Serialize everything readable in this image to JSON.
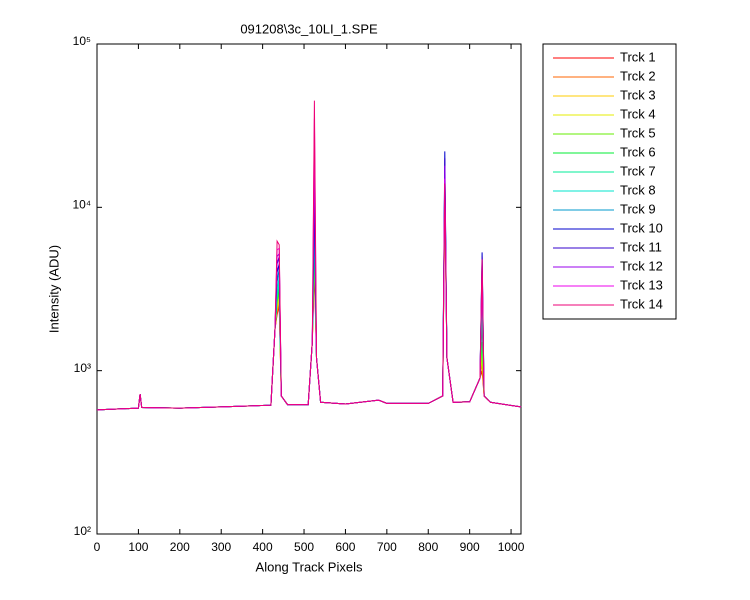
{
  "chart_data": {
    "type": "line",
    "title": "091208\\3c_10LI_1.SPE",
    "xlabel": "Along Track Pixels",
    "ylabel": "Intensity (ADU)",
    "yscale": "log",
    "xlim": [
      0,
      1024
    ],
    "ylim": [
      100,
      100000
    ],
    "xticks": [
      0,
      100,
      200,
      300,
      400,
      500,
      600,
      700,
      800,
      900,
      1000
    ],
    "yticks": [
      {
        "value": 100,
        "label": "10²"
      },
      {
        "value": 1000,
        "label": "10³"
      },
      {
        "value": 10000,
        "label": "10⁴"
      },
      {
        "value": 100000,
        "label": "10⁵"
      }
    ],
    "legend": "outside-right-top",
    "x": [
      0,
      100,
      104,
      108,
      200,
      300,
      420,
      430,
      435,
      440,
      445,
      460,
      510,
      520,
      525,
      530,
      540,
      600,
      680,
      700,
      800,
      835,
      840,
      845,
      860,
      900,
      925,
      930,
      935,
      950,
      1024
    ],
    "series": [
      {
        "name": "Trck 1",
        "color": "#ff0000",
        "values": [
          575,
          590,
          720,
          595,
          590,
          600,
          615,
          1800,
          2200,
          2500,
          700,
          620,
          620,
          1500,
          4000,
          1200,
          640,
          625,
          660,
          630,
          630,
          700,
          13000,
          1200,
          640,
          645,
          900,
          1000,
          700,
          640,
          600
        ]
      },
      {
        "name": "Trck 2",
        "color": "#ff6600",
        "values": [
          575,
          590,
          720,
          595,
          590,
          600,
          615,
          1800,
          2300,
          2600,
          700,
          620,
          620,
          1500,
          5000,
          1200,
          640,
          625,
          660,
          630,
          630,
          700,
          13500,
          1200,
          640,
          645,
          900,
          1100,
          700,
          640,
          600
        ]
      },
      {
        "name": "Trck 3",
        "color": "#ffcc00",
        "values": [
          575,
          590,
          720,
          595,
          590,
          600,
          615,
          1800,
          2400,
          2700,
          700,
          620,
          620,
          1500,
          6000,
          1200,
          640,
          625,
          660,
          630,
          630,
          700,
          14000,
          1200,
          640,
          645,
          900,
          1200,
          700,
          640,
          600
        ]
      },
      {
        "name": "Trck 4",
        "color": "#e5ee00",
        "values": [
          575,
          590,
          720,
          595,
          590,
          600,
          615,
          1800,
          2500,
          2800,
          700,
          620,
          620,
          1500,
          5500,
          1200,
          640,
          625,
          660,
          630,
          630,
          700,
          14000,
          1200,
          640,
          645,
          900,
          1300,
          700,
          640,
          600
        ]
      },
      {
        "name": "Trck 5",
        "color": "#66ee00",
        "values": [
          575,
          590,
          720,
          595,
          590,
          600,
          615,
          1800,
          2600,
          3000,
          700,
          620,
          620,
          1500,
          5000,
          1200,
          640,
          625,
          660,
          630,
          630,
          700,
          15000,
          1200,
          640,
          645,
          900,
          1500,
          700,
          640,
          600
        ]
      },
      {
        "name": "Trck 6",
        "color": "#00ee33",
        "values": [
          575,
          590,
          720,
          595,
          590,
          600,
          615,
          1800,
          2700,
          3200,
          700,
          620,
          620,
          1500,
          6000,
          1200,
          640,
          625,
          660,
          630,
          630,
          700,
          15000,
          1200,
          640,
          645,
          900,
          2000,
          700,
          640,
          600
        ]
      },
      {
        "name": "Trck 7",
        "color": "#00ee99",
        "values": [
          575,
          590,
          720,
          595,
          590,
          600,
          615,
          1800,
          2800,
          3500,
          700,
          620,
          620,
          1500,
          7000,
          1200,
          640,
          625,
          660,
          630,
          630,
          700,
          16000,
          1200,
          640,
          645,
          900,
          2500,
          700,
          640,
          600
        ]
      },
      {
        "name": "Trck 8",
        "color": "#00e5cc",
        "values": [
          575,
          590,
          720,
          595,
          590,
          600,
          615,
          1800,
          3000,
          3800,
          700,
          620,
          620,
          1500,
          8000,
          1200,
          640,
          625,
          660,
          630,
          630,
          700,
          17000,
          1200,
          640,
          645,
          900,
          3000,
          700,
          640,
          600
        ]
      },
      {
        "name": "Trck 9",
        "color": "#0099cc",
        "values": [
          575,
          590,
          720,
          595,
          590,
          600,
          615,
          1800,
          3500,
          4200,
          700,
          620,
          620,
          1500,
          10000,
          1200,
          640,
          625,
          660,
          630,
          630,
          700,
          18000,
          1200,
          640,
          645,
          900,
          4000,
          700,
          640,
          600
        ]
      },
      {
        "name": "Trck 10",
        "color": "#0000cc",
        "values": [
          575,
          590,
          720,
          595,
          590,
          600,
          615,
          1800,
          4000,
          4500,
          700,
          620,
          620,
          1500,
          12000,
          1200,
          640,
          625,
          660,
          630,
          630,
          700,
          22000,
          1200,
          640,
          645,
          900,
          5300,
          700,
          640,
          600
        ]
      },
      {
        "name": "Trck 11",
        "color": "#3300cc",
        "values": [
          575,
          590,
          720,
          595,
          590,
          600,
          615,
          1800,
          4500,
          5000,
          700,
          620,
          620,
          1500,
          15000,
          1200,
          640,
          625,
          660,
          630,
          630,
          700,
          20000,
          1200,
          640,
          645,
          900,
          5000,
          700,
          640,
          600
        ]
      },
      {
        "name": "Trck 12",
        "color": "#9900ee",
        "values": [
          575,
          590,
          720,
          595,
          590,
          600,
          615,
          1800,
          5000,
          5200,
          700,
          620,
          620,
          1500,
          20000,
          1200,
          640,
          625,
          660,
          630,
          630,
          700,
          18000,
          1200,
          640,
          645,
          900,
          4500,
          700,
          640,
          600
        ]
      },
      {
        "name": "Trck 13",
        "color": "#ee00ee",
        "values": [
          575,
          590,
          720,
          595,
          590,
          600,
          615,
          1800,
          5500,
          5600,
          700,
          620,
          620,
          1500,
          35000,
          1200,
          640,
          625,
          660,
          630,
          630,
          700,
          15000,
          1200,
          640,
          645,
          900,
          4000,
          700,
          640,
          600
        ]
      },
      {
        "name": "Trck 14",
        "color": "#ee0077",
        "values": [
          575,
          590,
          720,
          595,
          590,
          600,
          615,
          1800,
          6200,
          5900,
          700,
          620,
          620,
          1500,
          45000,
          1200,
          640,
          625,
          660,
          630,
          630,
          700,
          14000,
          1200,
          640,
          645,
          900,
          4800,
          700,
          640,
          600
        ]
      }
    ]
  }
}
